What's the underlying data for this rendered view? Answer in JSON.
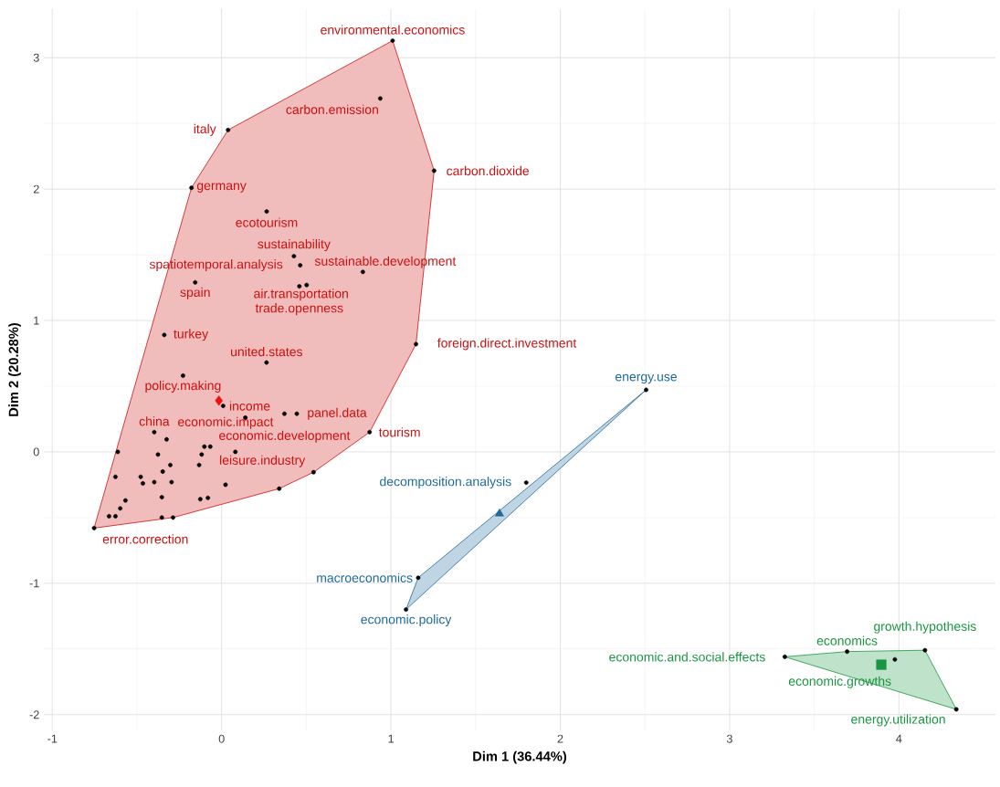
{
  "chart_data": {
    "type": "scatter",
    "xlabel": "Dim 1 (36.44%)",
    "ylabel": "Dim 2 (20.28%)",
    "xlim": [
      -1.05,
      4.57
    ],
    "ylim": [
      -2.12,
      3.37
    ],
    "xticks": [
      -1,
      0,
      1,
      2,
      3,
      4
    ],
    "yticks": [
      -2,
      -1,
      0,
      1,
      2,
      3
    ],
    "grid": true,
    "series": [
      {
        "type": "area",
        "color": "#cc1111",
        "x": [
          -0.753,
          -0.287,
          0.34,
          0.543,
          0.874,
          1.148,
          1.255,
          1.01,
          0.038,
          -0.178
        ],
        "values": [
          -0.58,
          -0.5,
          -0.28,
          -0.155,
          0.15,
          0.82,
          2.14,
          3.13,
          2.45,
          2.01
        ]
      },
      {
        "type": "area",
        "color": "#1f6a9a",
        "x": [
          1.089,
          2.507,
          1.161
        ],
        "values": [
          -1.2,
          0.472,
          -0.958
        ]
      },
      {
        "type": "area",
        "color": "#1a9641",
        "x": [
          3.326,
          3.694,
          4.154,
          4.339
        ],
        "values": [
          -1.56,
          -1.52,
          -1.51,
          -1.96
        ]
      },
      {
        "type": "scatter",
        "marker": "circle",
        "color": "#000000",
        "x": [
          1.01,
          0.937,
          0.038,
          1.255,
          -0.178,
          0.266,
          0.427,
          0.464,
          0.834,
          -0.156,
          0.459,
          0.502,
          -0.339,
          0.265,
          1.148,
          -0.228,
          0.009,
          0.14,
          0.371,
          0.444,
          0.874,
          -0.398,
          -0.325,
          -0.102,
          -0.067,
          -0.613,
          -0.376,
          -0.118,
          0.081,
          -0.303,
          -0.133,
          -0.348,
          0.543,
          -0.627,
          -0.478,
          -0.465,
          -0.398,
          -0.296,
          0.023,
          0.34,
          -0.568,
          -0.353,
          -0.126,
          -0.081,
          -0.599,
          -0.665,
          -0.627,
          -0.353,
          -0.287,
          -0.753,
          2.507,
          1.799,
          1.161,
          1.089,
          3.326,
          3.694,
          4.154,
          3.976,
          4.339
        ],
        "values": [
          3.13,
          2.69,
          2.45,
          2.14,
          2.01,
          1.83,
          1.49,
          1.42,
          1.37,
          1.29,
          1.26,
          1.27,
          0.89,
          0.68,
          0.82,
          0.58,
          0.35,
          0.26,
          0.29,
          0.29,
          0.15,
          0.15,
          0.095,
          0.04,
          0.04,
          0.0,
          -0.02,
          -0.02,
          0.0,
          -0.1,
          -0.1,
          -0.15,
          -0.155,
          -0.19,
          -0.19,
          -0.24,
          -0.23,
          -0.23,
          -0.25,
          -0.28,
          -0.37,
          -0.345,
          -0.36,
          -0.35,
          -0.43,
          -0.49,
          -0.49,
          -0.5,
          -0.5,
          -0.58,
          0.472,
          -0.234,
          -0.958,
          -1.2,
          -1.56,
          -1.52,
          -1.51,
          -1.58,
          -1.96
        ]
      },
      {
        "type": "scatter",
        "marker": "diamond",
        "color": "#ee1111",
        "x": [
          -0.016
        ],
        "values": [
          0.39
        ]
      },
      {
        "type": "scatter",
        "marker": "triangle",
        "color": "#1f6a9a",
        "x": [
          1.641
        ],
        "values": [
          -0.47
        ]
      },
      {
        "type": "scatter",
        "marker": "square",
        "color": "#1a9641",
        "x": [
          3.896
        ],
        "values": [
          -1.62
        ]
      }
    ],
    "annotations": [
      {
        "text": "environmental.economics",
        "x": 1.01,
        "y": 3.13
      },
      {
        "text": "carbon.emission",
        "x": 0.937,
        "y": 2.69
      },
      {
        "text": "italy",
        "x": 0.038,
        "y": 2.45
      },
      {
        "text": "carbon.dioxide",
        "x": 1.255,
        "y": 2.14
      },
      {
        "text": "germany",
        "x": -0.178,
        "y": 2.01
      },
      {
        "text": "ecotourism",
        "x": 0.266,
        "y": 1.83
      },
      {
        "text": "sustainability",
        "x": 0.427,
        "y": 1.49
      },
      {
        "text": "air.transportation",
        "x": 0.834,
        "y": 1.37
      },
      {
        "text": "spatiotemporal.analysis",
        "x": 0.464,
        "y": 1.42
      },
      {
        "text": "spain",
        "x": -0.156,
        "y": 1.29
      },
      {
        "text": "trade.openness",
        "x": 0.459,
        "y": 1.26
      },
      {
        "text": "sustainable.development",
        "x": 0.502,
        "y": 1.27
      },
      {
        "text": "foreign.direct.investment",
        "x": 1.148,
        "y": 0.82
      },
      {
        "text": "turkey",
        "x": -0.339,
        "y": 0.89
      },
      {
        "text": "united.states",
        "x": 0.265,
        "y": 0.68
      },
      {
        "text": "policy.making",
        "x": -0.228,
        "y": 0.58
      },
      {
        "text": "income",
        "x": 0.009,
        "y": 0.35
      },
      {
        "text": "economic.development",
        "x": 0.371,
        "y": 0.29
      },
      {
        "text": "panel.data",
        "x": 0.444,
        "y": 0.29
      },
      {
        "text": "china",
        "x": -0.398,
        "y": 0.15
      },
      {
        "text": "economic.impact",
        "x": -0.325,
        "y": 0.095
      },
      {
        "text": "tourism",
        "x": 0.874,
        "y": 0.15
      },
      {
        "text": "leisure.industry",
        "x": 0.543,
        "y": -0.155
      },
      {
        "text": "error.correction",
        "x": -0.753,
        "y": -0.58
      },
      {
        "text": "energy.use",
        "x": 2.507,
        "y": 0.472
      },
      {
        "text": "decomposition.analysis",
        "x": 1.799,
        "y": -0.234
      },
      {
        "text": "macroeconomics",
        "x": 1.161,
        "y": -0.958
      },
      {
        "text": "economic.policy",
        "x": 1.089,
        "y": -1.2
      },
      {
        "text": "economics",
        "x": 3.694,
        "y": -1.52
      },
      {
        "text": "growth.hypothesis",
        "x": 4.154,
        "y": -1.51
      },
      {
        "text": "economic.and.social.effects",
        "x": 3.326,
        "y": -1.56
      },
      {
        "text": "economic.growths",
        "x": 3.976,
        "y": -1.58
      },
      {
        "text": "energy.utilization",
        "x": 4.339,
        "y": -1.96
      }
    ]
  }
}
